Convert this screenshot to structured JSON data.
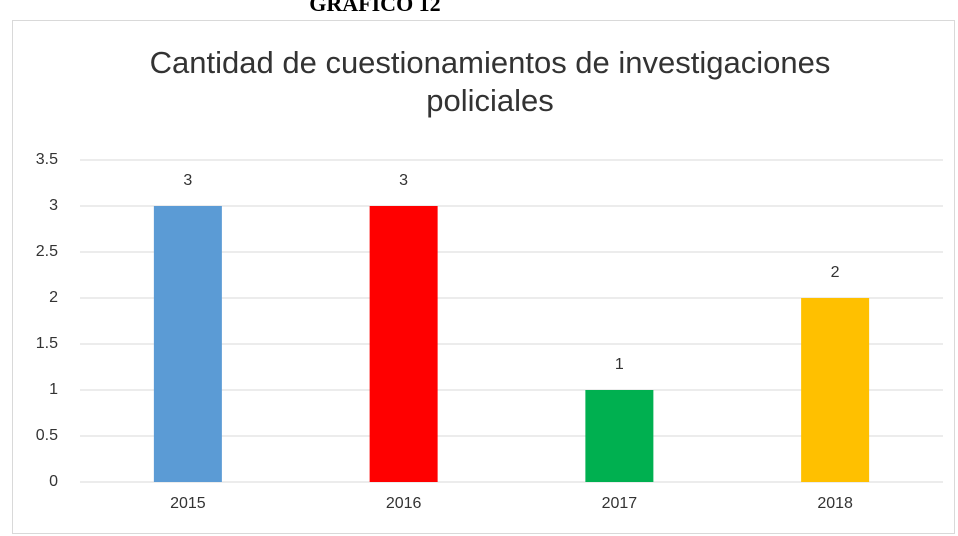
{
  "figure_label": "GRAFICO 12",
  "chart_data": {
    "type": "bar",
    "title": "Cantidad de cuestionamientos de investigaciones policiales",
    "categories": [
      "2015",
      "2016",
      "2017",
      "2018"
    ],
    "values": [
      3,
      3,
      1,
      2
    ],
    "colors": [
      "#5b9bd5",
      "#ff0000",
      "#00b050",
      "#ffc000"
    ],
    "ylim": [
      0,
      3.5
    ],
    "yticks": [
      0,
      0.5,
      1,
      1.5,
      2,
      2.5,
      3,
      3.5
    ],
    "grid": true,
    "data_labels": true
  }
}
